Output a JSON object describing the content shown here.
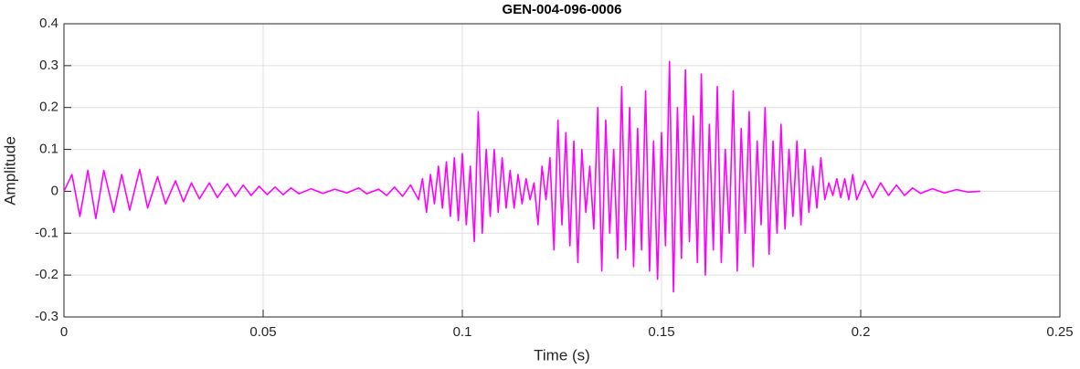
{
  "chart_data": {
    "type": "line",
    "title": "GEN-004-096-0006",
    "xlabel": "Time (s)",
    "ylabel": "Amplitude",
    "color": "#ff00ff",
    "grid": true,
    "xlim": [
      0,
      0.25
    ],
    "xticks": [
      0,
      0.05,
      0.1,
      0.15,
      0.2,
      0.25
    ],
    "ylim": [
      -0.3,
      0.4
    ],
    "yticks": [
      -0.3,
      -0.2,
      -0.1,
      0,
      0.1,
      0.2,
      0.3,
      0.4
    ],
    "x": [
      0,
      0.002,
      0.004,
      0.006,
      0.008,
      0.01,
      0.0125,
      0.0145,
      0.0165,
      0.019,
      0.021,
      0.0235,
      0.0255,
      0.028,
      0.03,
      0.032,
      0.034,
      0.0365,
      0.0385,
      0.041,
      0.043,
      0.045,
      0.047,
      0.049,
      0.051,
      0.053,
      0.055,
      0.057,
      0.059,
      0.062,
      0.065,
      0.068,
      0.071,
      0.074,
      0.076,
      0.079,
      0.081,
      0.083,
      0.085,
      0.087,
      0.089,
      0.09,
      0.091,
      0.092,
      0.093,
      0.094,
      0.095,
      0.096,
      0.097,
      0.098,
      0.099,
      0.1,
      0.101,
      0.102,
      0.103,
      0.104,
      0.105,
      0.106,
      0.107,
      0.108,
      0.109,
      0.11,
      0.111,
      0.112,
      0.113,
      0.114,
      0.115,
      0.116,
      0.117,
      0.118,
      0.119,
      0.12,
      0.121,
      0.122,
      0.123,
      0.124,
      0.125,
      0.126,
      0.127,
      0.128,
      0.129,
      0.13,
      0.131,
      0.132,
      0.133,
      0.134,
      0.135,
      0.136,
      0.137,
      0.138,
      0.139,
      0.14,
      0.141,
      0.142,
      0.143,
      0.144,
      0.145,
      0.146,
      0.147,
      0.148,
      0.149,
      0.15,
      0.151,
      0.152,
      0.153,
      0.154,
      0.155,
      0.156,
      0.157,
      0.158,
      0.159,
      0.16,
      0.161,
      0.162,
      0.163,
      0.164,
      0.165,
      0.166,
      0.167,
      0.168,
      0.169,
      0.17,
      0.171,
      0.172,
      0.173,
      0.174,
      0.175,
      0.176,
      0.177,
      0.178,
      0.179,
      0.18,
      0.181,
      0.182,
      0.183,
      0.184,
      0.185,
      0.186,
      0.187,
      0.188,
      0.189,
      0.19,
      0.191,
      0.192,
      0.193,
      0.194,
      0.195,
      0.196,
      0.197,
      0.198,
      0.199,
      0.201,
      0.203,
      0.205,
      0.207,
      0.209,
      0.211,
      0.213,
      0.215,
      0.218,
      0.221,
      0.224,
      0.227,
      0.23
    ],
    "values": [
      0,
      0.04,
      -0.06,
      0.05,
      -0.065,
      0.05,
      -0.05,
      0.04,
      -0.045,
      0.052,
      -0.04,
      0.035,
      -0.03,
      0.025,
      -0.025,
      0.02,
      -0.018,
      0.02,
      -0.015,
      0.018,
      -0.012,
      0.015,
      -0.01,
      0.012,
      -0.008,
      0.01,
      -0.008,
      0.008,
      -0.006,
      0.006,
      -0.005,
      0.005,
      -0.004,
      0.008,
      -0.006,
      0.005,
      -0.01,
      0.01,
      -0.012,
      0.015,
      -0.02,
      0.03,
      -0.05,
      0.04,
      -0.03,
      0.06,
      -0.04,
      0.07,
      -0.06,
      0.08,
      -0.07,
      0.09,
      -0.08,
      0.06,
      -0.12,
      0.19,
      -0.1,
      0.1,
      -0.06,
      0.1,
      -0.05,
      0.08,
      -0.04,
      0.05,
      -0.04,
      0.04,
      -0.03,
      0.03,
      -0.02,
      0.02,
      -0.08,
      0.06,
      -0.02,
      0.08,
      -0.14,
      0.17,
      -0.08,
      0.14,
      -0.13,
      0.12,
      -0.17,
      0.1,
      -0.05,
      0.06,
      -0.09,
      0.2,
      -0.19,
      0.17,
      -0.1,
      0.1,
      -0.16,
      0.25,
      -0.14,
      0.2,
      -0.18,
      0.15,
      -0.14,
      0.24,
      -0.19,
      0.12,
      -0.21,
      0.14,
      -0.13,
      0.31,
      -0.24,
      0.2,
      -0.16,
      0.29,
      -0.12,
      0.18,
      -0.17,
      0.28,
      -0.2,
      0.16,
      -0.14,
      0.25,
      -0.17,
      0.1,
      -0.1,
      0.24,
      -0.19,
      0.15,
      -0.1,
      0.19,
      -0.18,
      0.12,
      -0.08,
      0.2,
      -0.15,
      0.12,
      -0.1,
      0.16,
      -0.09,
      0.1,
      -0.06,
      0.12,
      -0.08,
      0.1,
      -0.05,
      0.06,
      -0.04,
      0.08,
      -0.02,
      0.02,
      -0.01,
      0.03,
      -0.015,
      0.03,
      -0.02,
      0.04,
      -0.02,
      0.025,
      -0.015,
      0.02,
      -0.01,
      0.015,
      -0.01,
      0.008,
      -0.005,
      0.006,
      -0.004,
      0.004,
      -0.002,
      0
    ]
  }
}
